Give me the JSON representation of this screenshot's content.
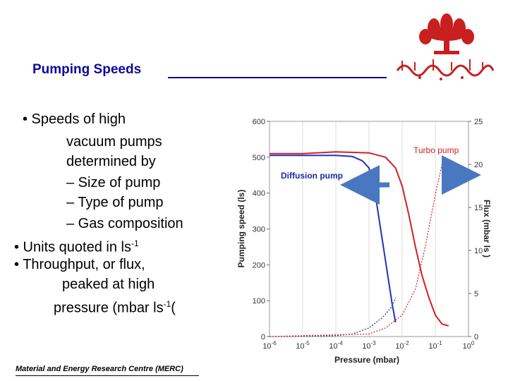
{
  "slide": {
    "title": "Pumping Speeds",
    "footer": "Material and Energy Research Centre (MERC)"
  },
  "bullets": {
    "b1": "• Speeds of high",
    "b1_l2": "vacuum pumps",
    "b1_l3": "determined by",
    "sub1": "– Size of pump",
    "sub2": "– Type of pump",
    "sub3": "– Gas composition",
    "b2_pre": "• Units quoted in ls",
    "b2_sup": "-1",
    "b3": "• Throughput, or flux,",
    "b3_l2": "peaked at high",
    "b3_l3_pre": "pressure (mbar ls",
    "b3_l3_sup": "-1",
    "b3_l3_post": "("
  },
  "chart_data": {
    "type": "line",
    "xlabel": "Pressure (mbar)",
    "ylabel": "Pumping speed (ls)",
    "y2label": "Flux (mbar ls )",
    "x_log": true,
    "xlim_exp": [
      -6,
      0
    ],
    "ylim": [
      0,
      600
    ],
    "y2lim": [
      0,
      25
    ],
    "x_tick_base": "10",
    "x_ticks": [
      "-6",
      "-5",
      "-4",
      "-3",
      "-2",
      "-1",
      "0"
    ],
    "y_ticks": [
      "0",
      "100",
      "200",
      "300",
      "400",
      "500",
      "600"
    ],
    "y2_ticks": [
      "0",
      "5",
      "10",
      "15",
      "20",
      "25"
    ],
    "annotations": [
      "Diffusion pump",
      "Turbo pump"
    ],
    "colors": {
      "diffusion": "#2233bb",
      "turbo": "#d42020",
      "annotation_diffusion": "#1a2aa8",
      "annotation_turbo": "#d42020",
      "arrow": "#4a78c0"
    },
    "series": [
      {
        "name": "Diffusion pump",
        "axis": "left",
        "x": [
          -6,
          -5,
          -4,
          -3.5,
          -3.2,
          -3.0,
          -2.8,
          -2.6,
          -2.4,
          -2.3,
          -2.2
        ],
        "y": [
          505,
          505,
          505,
          502,
          490,
          470,
          390,
          270,
          150,
          90,
          40
        ]
      },
      {
        "name": "Turbo pump",
        "axis": "left",
        "x": [
          -6,
          -5,
          -4,
          -3.0,
          -2.5,
          -2.2,
          -2.0,
          -1.8,
          -1.6,
          -1.4,
          -1.2,
          -1.0,
          -0.8,
          -0.6
        ],
        "y": [
          510,
          510,
          515,
          512,
          500,
          470,
          420,
          340,
          250,
          170,
          110,
          60,
          35,
          30
        ]
      },
      {
        "name": "Diffusion pump flux",
        "axis": "right",
        "x": [
          -6,
          -4,
          -3.5,
          -3.0,
          -2.6,
          -2.3,
          -2.2
        ],
        "y": [
          0,
          0.1,
          0.3,
          1.0,
          2.2,
          3.5,
          4.5
        ]
      },
      {
        "name": "Turbo pump flux",
        "axis": "right",
        "x": [
          -6,
          -3,
          -2.5,
          -2.0,
          -1.6,
          -1.3,
          -1.0,
          -0.8,
          -0.6,
          -0.4
        ],
        "y": [
          0,
          0.3,
          1.0,
          2.5,
          5.5,
          10.5,
          16.5,
          20.0,
          20.5,
          19.0
        ]
      }
    ]
  }
}
